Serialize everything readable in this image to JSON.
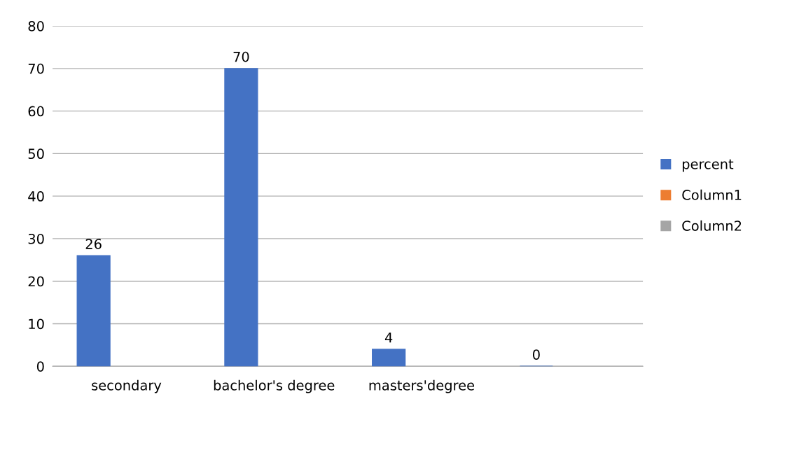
{
  "chart_data": {
    "type": "bar",
    "categories": [
      "secondary",
      "bachelor's degree",
      "masters'degree",
      null
    ],
    "series": [
      {
        "name": "percent",
        "color": "#4472c4",
        "values": [
          26,
          70,
          4,
          0
        ]
      },
      {
        "name": "Column1",
        "color": "#ed7d31",
        "values": [
          null,
          null,
          null,
          null
        ]
      },
      {
        "name": "Column2",
        "color": "#a5a5a5",
        "values": [
          null,
          null,
          null,
          null
        ]
      }
    ],
    "ylim": [
      0,
      80
    ],
    "yticks": [
      0,
      10,
      20,
      30,
      40,
      50,
      60,
      70,
      80
    ],
    "grid": "y",
    "legend": "right",
    "data_labels": true
  }
}
